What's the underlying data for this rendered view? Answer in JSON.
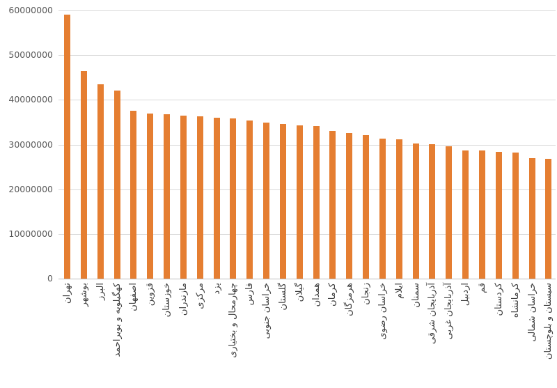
{
  "chart_data": {
    "type": "bar",
    "title": "",
    "xlabel": "",
    "ylabel": "",
    "categories": [
      "تهران",
      "بوشهر",
      "البرز",
      "کهگیلویه و بویراحمد",
      "اصفهان",
      "قزوین",
      "خوزستان",
      "مازندران",
      "مرکزی",
      "یزد",
      "چهارمحال و بختیاری",
      "فارس",
      "خراسان جنوبی",
      "گلستان",
      "گیلان",
      "همدان",
      "کرمان",
      "هرمزگان",
      "زنجان",
      "خراسان رضوی",
      "ایلام",
      "سمنان",
      "آذربایجان شرقی",
      "آذربایجان غربی",
      "اردبیل",
      "قم",
      "کردستان",
      "کرمانشاه",
      "خراسان شمالی",
      "سیستان و بلوچستان"
    ],
    "values": [
      59000000,
      46400000,
      43500000,
      42100000,
      37500000,
      37000000,
      36800000,
      36500000,
      36300000,
      36000000,
      35800000,
      35400000,
      34900000,
      34600000,
      34300000,
      34100000,
      33100000,
      32500000,
      32100000,
      31300000,
      31100000,
      30300000,
      30100000,
      29600000,
      28700000,
      28600000,
      28300000,
      28200000,
      27000000,
      26800000
    ],
    "ylim": [
      0,
      60000000
    ],
    "ytick_interval": 10000000,
    "ytick_labels": [
      "0",
      "10000000",
      "20000000",
      "30000000",
      "40000000",
      "50000000",
      "60000000"
    ],
    "grid": "horizontal",
    "legend": "none",
    "bar_color": "#e57e31",
    "gridline_color": "#d9d9d9",
    "axis_line_color": "#bdbdbd",
    "ytick_label_color": "#595959",
    "xtick_label_color": "#404040"
  }
}
